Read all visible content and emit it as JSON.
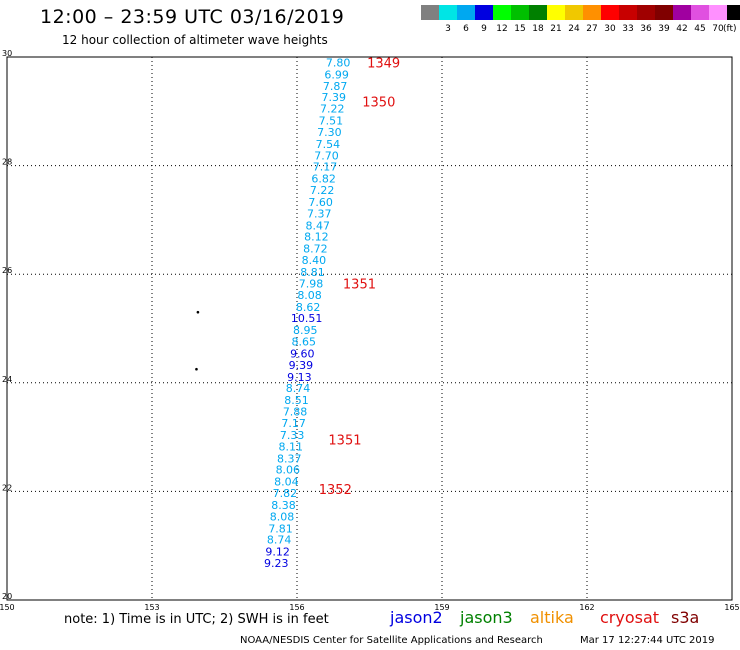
{
  "header": {
    "title": "12:00 – 23:59 UTC 03/16/2019",
    "subtitle": "12 hour collection of altimeter wave heights"
  },
  "colorbar": {
    "colors": [
      "#808080",
      "#00e5e5",
      "#00a8f0",
      "#0000e0",
      "#00ff00",
      "#00c000",
      "#008000",
      "#ffff00",
      "#f0c800",
      "#ff9000",
      "#ff0000",
      "#c80000",
      "#a00000",
      "#800000",
      "#a000a0",
      "#e050e0",
      "#ff90ff",
      "#000000"
    ],
    "labels": [
      "3",
      "6",
      "9",
      "12",
      "15",
      "18",
      "21",
      "24",
      "27",
      "30",
      "33",
      "36",
      "39",
      "42",
      "45",
      "70"
    ],
    "unit": "(ft)"
  },
  "map": {
    "lon_ticks": [
      "150",
      "153",
      "156",
      "159",
      "162",
      "165"
    ],
    "lat_ticks": [
      "30",
      "28",
      "26",
      "24",
      "22",
      "20"
    ],
    "lon_range": [
      150,
      165
    ],
    "lat_range": [
      20,
      30
    ],
    "grid": true,
    "land_points": [
      {
        "lon": 153.95,
        "lat": 25.3
      },
      {
        "lon": 153.92,
        "lat": 24.25
      }
    ]
  },
  "chart_data": {
    "type": "scatter",
    "x_label": "",
    "y_label": "",
    "xlim": [
      150,
      165
    ],
    "ylim": [
      20,
      30
    ],
    "observations": [
      {
        "lon": 156.85,
        "lat": 29.9,
        "swh": "7.80",
        "c": "#00a8f0"
      },
      {
        "lon": 156.82,
        "lat": 29.68,
        "swh": "6.99",
        "c": "#00a8f0"
      },
      {
        "lon": 156.79,
        "lat": 29.47,
        "swh": "7.87",
        "c": "#00a8f0"
      },
      {
        "lon": 156.76,
        "lat": 29.26,
        "swh": "7.39",
        "c": "#00a8f0"
      },
      {
        "lon": 156.73,
        "lat": 29.05,
        "swh": "7.22",
        "c": "#00a8f0"
      },
      {
        "lon": 156.7,
        "lat": 28.83,
        "swh": "7.51",
        "c": "#00a8f0"
      },
      {
        "lon": 156.67,
        "lat": 28.62,
        "swh": "7.30",
        "c": "#00a8f0"
      },
      {
        "lon": 156.64,
        "lat": 28.4,
        "swh": "7.54",
        "c": "#00a8f0"
      },
      {
        "lon": 156.61,
        "lat": 28.19,
        "swh": "7.70",
        "c": "#00a8f0"
      },
      {
        "lon": 156.58,
        "lat": 27.98,
        "swh": "7.17",
        "c": "#00a8f0"
      },
      {
        "lon": 156.55,
        "lat": 27.76,
        "swh": "6.82",
        "c": "#00a8f0"
      },
      {
        "lon": 156.52,
        "lat": 27.55,
        "swh": "7.22",
        "c": "#00a8f0"
      },
      {
        "lon": 156.49,
        "lat": 27.33,
        "swh": "7.60",
        "c": "#00a8f0"
      },
      {
        "lon": 156.46,
        "lat": 27.12,
        "swh": "7.37",
        "c": "#00a8f0"
      },
      {
        "lon": 156.43,
        "lat": 26.9,
        "swh": "8.47",
        "c": "#00a8f0"
      },
      {
        "lon": 156.4,
        "lat": 26.69,
        "swh": "8.12",
        "c": "#00a8f0"
      },
      {
        "lon": 156.38,
        "lat": 26.47,
        "swh": "8.72",
        "c": "#00a8f0"
      },
      {
        "lon": 156.35,
        "lat": 26.26,
        "swh": "8.40",
        "c": "#00a8f0"
      },
      {
        "lon": 156.32,
        "lat": 26.04,
        "swh": "8.81",
        "c": "#00a8f0"
      },
      {
        "lon": 156.29,
        "lat": 25.83,
        "swh": "7.98",
        "c": "#00a8f0"
      },
      {
        "lon": 156.26,
        "lat": 25.62,
        "swh": "8.08",
        "c": "#00a8f0"
      },
      {
        "lon": 156.23,
        "lat": 25.4,
        "swh": "8.62",
        "c": "#00a8f0"
      },
      {
        "lon": 156.2,
        "lat": 25.19,
        "swh": "10.51",
        "c": "#0000e0"
      },
      {
        "lon": 156.17,
        "lat": 24.97,
        "swh": "8.95",
        "c": "#00a8f0"
      },
      {
        "lon": 156.14,
        "lat": 24.76,
        "swh": "8.65",
        "c": "#00a8f0"
      },
      {
        "lon": 156.11,
        "lat": 24.54,
        "swh": "9.60",
        "c": "#0000e0"
      },
      {
        "lon": 156.08,
        "lat": 24.33,
        "swh": "9.39",
        "c": "#0000e0"
      },
      {
        "lon": 156.05,
        "lat": 24.11,
        "swh": "9.13",
        "c": "#0000e0"
      },
      {
        "lon": 156.02,
        "lat": 23.9,
        "swh": "8.74",
        "c": "#00a8f0"
      },
      {
        "lon": 155.99,
        "lat": 23.68,
        "swh": "8.51",
        "c": "#00a8f0"
      },
      {
        "lon": 155.96,
        "lat": 23.47,
        "swh": "7.88",
        "c": "#00a8f0"
      },
      {
        "lon": 155.93,
        "lat": 23.26,
        "swh": "7.17",
        "c": "#00a8f0"
      },
      {
        "lon": 155.9,
        "lat": 23.04,
        "swh": "7.33",
        "c": "#00a8f0"
      },
      {
        "lon": 155.87,
        "lat": 22.83,
        "swh": "8.11",
        "c": "#00a8f0"
      },
      {
        "lon": 155.84,
        "lat": 22.61,
        "swh": "8.37",
        "c": "#00a8f0"
      },
      {
        "lon": 155.81,
        "lat": 22.4,
        "swh": "8.06",
        "c": "#00a8f0"
      },
      {
        "lon": 155.78,
        "lat": 22.18,
        "swh": "8.04",
        "c": "#00a8f0"
      },
      {
        "lon": 155.75,
        "lat": 21.97,
        "swh": "7.82",
        "c": "#00a8f0"
      },
      {
        "lon": 155.72,
        "lat": 21.75,
        "swh": "8.38",
        "c": "#00a8f0"
      },
      {
        "lon": 155.69,
        "lat": 21.54,
        "swh": "8.08",
        "c": "#00a8f0"
      },
      {
        "lon": 155.66,
        "lat": 21.32,
        "swh": "7.81",
        "c": "#00a8f0"
      },
      {
        "lon": 155.63,
        "lat": 21.11,
        "swh": "8.74",
        "c": "#00a8f0"
      },
      {
        "lon": 155.6,
        "lat": 20.89,
        "swh": "9.12",
        "c": "#0000e0"
      },
      {
        "lon": 155.57,
        "lat": 20.68,
        "swh": "9.23",
        "c": "#0000e0"
      }
    ],
    "pass_labels": [
      {
        "lon": 157.45,
        "lat": 29.9,
        "text": "1349"
      },
      {
        "lon": 157.35,
        "lat": 29.18,
        "text": "1350"
      },
      {
        "lon": 156.95,
        "lat": 25.83,
        "text": "1351"
      },
      {
        "lon": 156.65,
        "lat": 22.96,
        "text": "1351"
      },
      {
        "lon": 156.45,
        "lat": 22.04,
        "text": "1352"
      }
    ]
  },
  "footer": {
    "note": "note:  1) Time is in UTC;  2) SWH is in feet",
    "satellites": [
      {
        "name": "jason2",
        "color": "#0000e0"
      },
      {
        "name": "jason3",
        "color": "#008000"
      },
      {
        "name": "altika",
        "color": "#f09000"
      },
      {
        "name": "cryosat",
        "color": "#e01010"
      },
      {
        "name": "s3a",
        "color": "#800000"
      }
    ],
    "credit": "NOAA/NESDIS Center for Satellite Applications and Research",
    "timestamp": "Mar 17 12:27:44 UTC 2019"
  }
}
